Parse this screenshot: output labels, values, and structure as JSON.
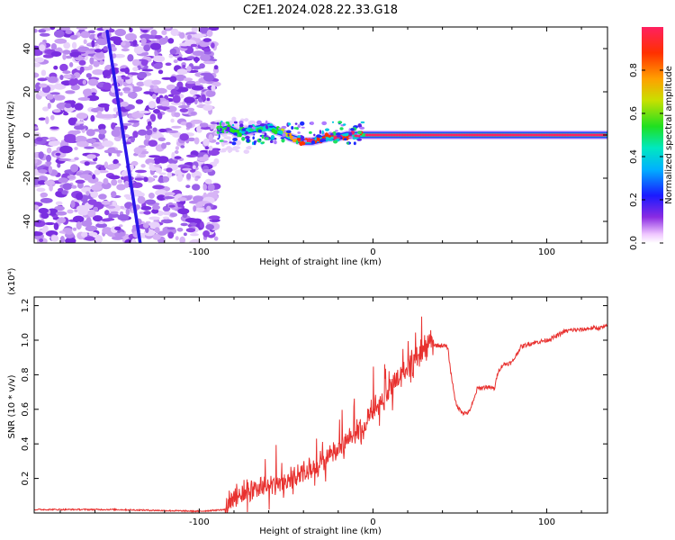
{
  "title": "C2E1.2024.028.22.33.G18",
  "chart_data": [
    {
      "type": "heatmap",
      "title": "C2E1.2024.028.22.33.G18",
      "xlabel": "Height of straight line (km)",
      "ylabel": "Frequency (Hz)",
      "xlim": [
        -195,
        135
      ],
      "ylim": [
        -50,
        50
      ],
      "xticks": [
        -100,
        0,
        100
      ],
      "xtick_labels": [
        "-100",
        "0",
        "100"
      ],
      "yticks": [
        -40,
        -20,
        0,
        20,
        40
      ],
      "ytick_labels": [
        "-40",
        "-20",
        "0",
        "20",
        "40"
      ],
      "colorbar": {
        "label": "Normalized spectral amplitude",
        "range": [
          0,
          1
        ],
        "ticks": [
          0.0,
          0.2,
          0.4,
          0.6,
          0.8
        ],
        "tick_labels": [
          "0.0",
          "0.2",
          "0.4",
          "0.6",
          "0.8"
        ]
      },
      "noise_region_x": [
        -195,
        -90
      ],
      "diagonal_line": {
        "x": [
          -153,
          -134
        ],
        "y": [
          48,
          -50
        ]
      },
      "signal_track": [
        {
          "x": -89,
          "y": 2,
          "amp": 0.5
        },
        {
          "x": -83,
          "y": 3,
          "amp": 0.45
        },
        {
          "x": -78,
          "y": 1,
          "amp": 0.5
        },
        {
          "x": -72,
          "y": 2,
          "amp": 0.4
        },
        {
          "x": -66,
          "y": 3,
          "amp": 0.45
        },
        {
          "x": -60,
          "y": 4,
          "amp": 0.35
        },
        {
          "x": -56,
          "y": 2,
          "amp": 0.5
        },
        {
          "x": -52,
          "y": 1,
          "amp": 0.55
        },
        {
          "x": -48,
          "y": -1,
          "amp": 0.7
        },
        {
          "x": -44,
          "y": -2,
          "amp": 0.75
        },
        {
          "x": -40,
          "y": -3,
          "amp": 0.85
        },
        {
          "x": -35,
          "y": -3,
          "amp": 0.9
        },
        {
          "x": -30,
          "y": -2,
          "amp": 0.8
        },
        {
          "x": -25,
          "y": -1,
          "amp": 0.85
        },
        {
          "x": -20,
          "y": -1,
          "amp": 0.9
        },
        {
          "x": -15,
          "y": 0,
          "amp": 0.85
        },
        {
          "x": -10,
          "y": 0,
          "amp": 0.9
        },
        {
          "x": -5,
          "y": 0,
          "amp": 0.85
        },
        {
          "x": 0,
          "y": 0,
          "amp": 0.95
        },
        {
          "x": 20,
          "y": 0,
          "amp": 1.0
        },
        {
          "x": 60,
          "y": 0,
          "amp": 1.0
        },
        {
          "x": 100,
          "y": 0,
          "amp": 1.0
        },
        {
          "x": 135,
          "y": 0,
          "amp": 1.0
        }
      ]
    },
    {
      "type": "line",
      "xlabel": "Height of straight line (km)",
      "ylabel": "SNR (10 * v/v)",
      "y_scale_label": "(x10⁴)",
      "xlim": [
        -195,
        135
      ],
      "ylim": [
        0,
        1.25
      ],
      "xticks": [
        -100,
        0,
        100
      ],
      "xtick_labels": [
        "-100",
        "0",
        "100"
      ],
      "yticks": [
        0.2,
        0.4,
        0.6,
        0.8,
        1.0,
        1.2
      ],
      "ytick_labels": [
        "0.2",
        "0.4",
        "0.6",
        "0.8",
        "1.0",
        "1.2"
      ],
      "series": [
        {
          "name": "SNR",
          "color": "#e8312f",
          "x": [
            -195,
            -150,
            -100,
            -85,
            -80,
            -75,
            -70,
            -65,
            -60,
            -55,
            -50,
            -45,
            -40,
            -35,
            -30,
            -25,
            -20,
            -15,
            -10,
            -5,
            0,
            5,
            10,
            15,
            20,
            25,
            30,
            33,
            35,
            40,
            43,
            45,
            48,
            52,
            55,
            58,
            60,
            65,
            70,
            72,
            75,
            80,
            85,
            90,
            95,
            100,
            105,
            110,
            115,
            120,
            125,
            130,
            135
          ],
          "y": [
            0.02,
            0.02,
            0.01,
            0.02,
            0.08,
            0.12,
            0.14,
            0.15,
            0.16,
            0.17,
            0.18,
            0.2,
            0.23,
            0.26,
            0.3,
            0.33,
            0.35,
            0.4,
            0.45,
            0.5,
            0.6,
            0.65,
            0.72,
            0.78,
            0.85,
            0.9,
            0.95,
            1.02,
            0.97,
            0.97,
            0.96,
            0.8,
            0.62,
            0.58,
            0.58,
            0.65,
            0.72,
            0.73,
            0.72,
            0.82,
            0.86,
            0.87,
            0.96,
            0.98,
            0.99,
            1.0,
            1.02,
            1.05,
            1.06,
            1.06,
            1.07,
            1.07,
            1.08
          ]
        }
      ]
    }
  ]
}
